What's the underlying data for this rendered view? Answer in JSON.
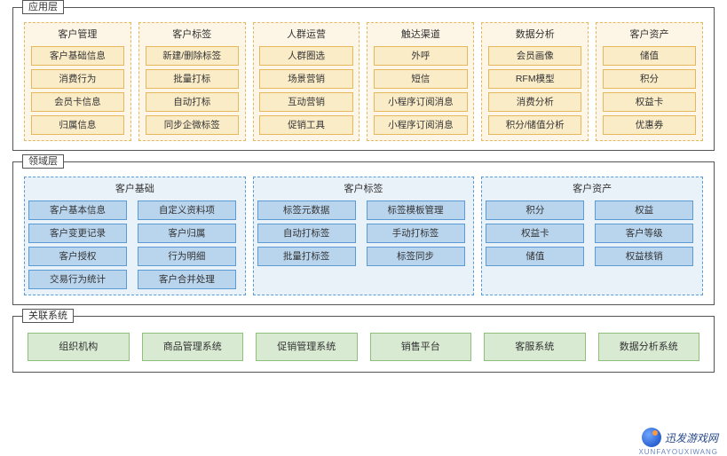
{
  "colors": {
    "border": "#555555",
    "orange_bg": "#fdf5e5",
    "orange_cell": "#fbecc8",
    "orange_border": "#e6b85c",
    "blue_bg": "#eaf2f9",
    "blue_cell": "#b9d5ee",
    "blue_border": "#5b9bd5",
    "green_cell": "#d9ead3",
    "green_border": "#8fbf7a",
    "text": "#333333",
    "wm_text": "#2a4a8a"
  },
  "layer1": {
    "title": "应用层",
    "cols": [
      {
        "title": "客户管理",
        "items": [
          "客户基础信息",
          "消费行为",
          "会员卡信息",
          "归属信息"
        ]
      },
      {
        "title": "客户标签",
        "items": [
          "新建/删除标签",
          "批量打标",
          "自动打标",
          "同步企微标签"
        ]
      },
      {
        "title": "人群运营",
        "items": [
          "人群圈选",
          "场景营销",
          "互动营销",
          "促销工具"
        ]
      },
      {
        "title": "触达渠道",
        "items": [
          "外呼",
          "短信",
          "小程序订阅消息",
          "小程序订阅消息"
        ]
      },
      {
        "title": "数据分析",
        "items": [
          "会员画像",
          "RFM模型",
          "消费分析",
          "积分/储值分析"
        ]
      },
      {
        "title": "客户资产",
        "items": [
          "储值",
          "积分",
          "权益卡",
          "优惠券"
        ]
      }
    ]
  },
  "layer2": {
    "title": "领域层",
    "cols": [
      {
        "title": "客户基础",
        "left": [
          "客户基本信息",
          "客户变更记录",
          "客户授权",
          "交易行为统计"
        ],
        "right": [
          "自定义资料项",
          "客户归属",
          "行为明细",
          "客户合并处理"
        ]
      },
      {
        "title": "客户标签",
        "left": [
          "标签元数据",
          "自动打标签",
          "批量打标签"
        ],
        "right": [
          "标签模板管理",
          "手动打标签",
          "标签同步"
        ]
      },
      {
        "title": "客户资产",
        "left": [
          "积分",
          "权益卡",
          "储值"
        ],
        "right": [
          "权益",
          "客户等级",
          "权益核销"
        ]
      }
    ]
  },
  "layer3": {
    "title": "关联系统",
    "items": [
      "组织机构",
      "商品管理系统",
      "促销管理系统",
      "销售平台",
      "客服系统",
      "数据分析系统"
    ]
  },
  "watermark": {
    "main": "迅发游戏网",
    "sub": "XUNFAYOUXIWANG"
  }
}
